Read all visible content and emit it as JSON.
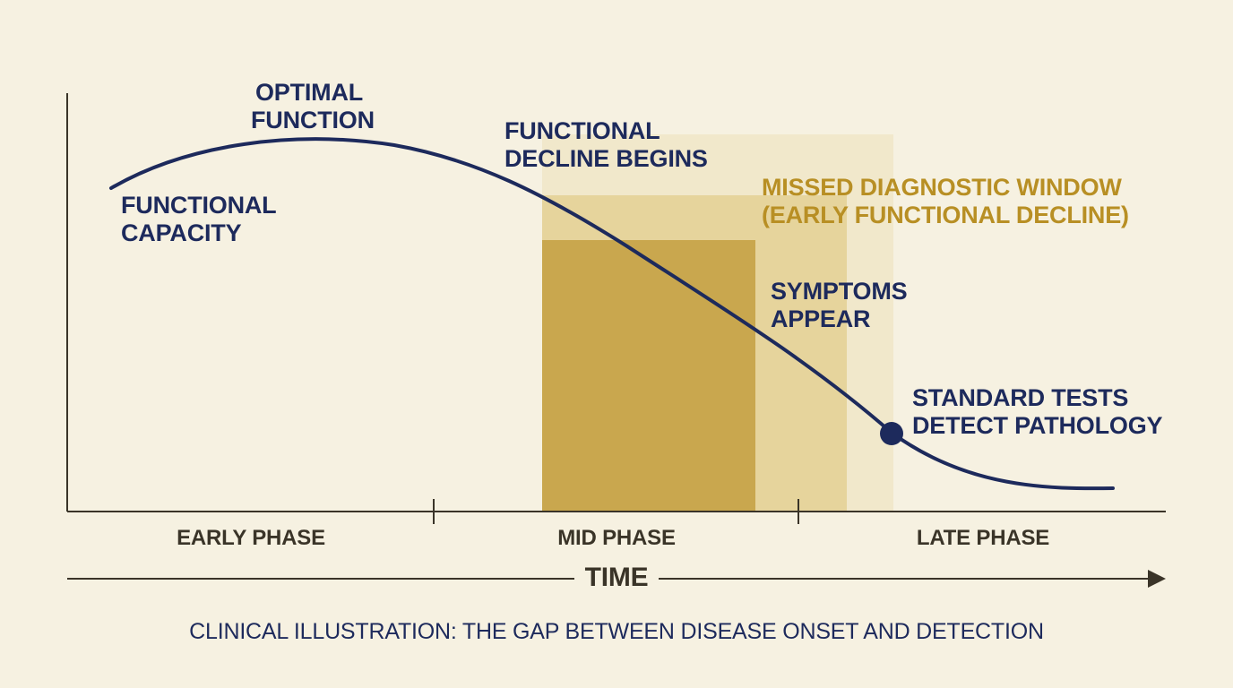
{
  "colors": {
    "background": "#f6f1e1",
    "curve": "#1d2a5c",
    "window_dark": "#c9a74e",
    "window_light": "#e8d6a2",
    "window_text": "#b88f24",
    "axis": "#3a3428"
  },
  "annotations": {
    "functional_capacity": [
      "FUNCTIONAL",
      "CAPACITY"
    ],
    "optimal_function": [
      "OPTIMAL",
      "FUNCTION"
    ],
    "functional_decline": [
      "FUNCTIONAL",
      "DECLINE BEGINS"
    ],
    "missed_window": [
      "MISSED DIAGNOSTIC WINDOW",
      "(EARLY FUNCTIONAL DECLINE)"
    ],
    "symptoms": [
      "SYMPTOMS",
      "APPEAR"
    ],
    "standard_tests": [
      "STANDARD TESTS",
      "DETECT PATHOLOGY"
    ]
  },
  "phases": [
    "EARLY PHASE",
    "MID PHASE",
    "LATE PHASE"
  ],
  "time_axis_label": "TIME",
  "caption": "CLINICAL ILLUSTRATION: THE GAP BETWEEN DISEASE ONSET AND DETECTION"
}
